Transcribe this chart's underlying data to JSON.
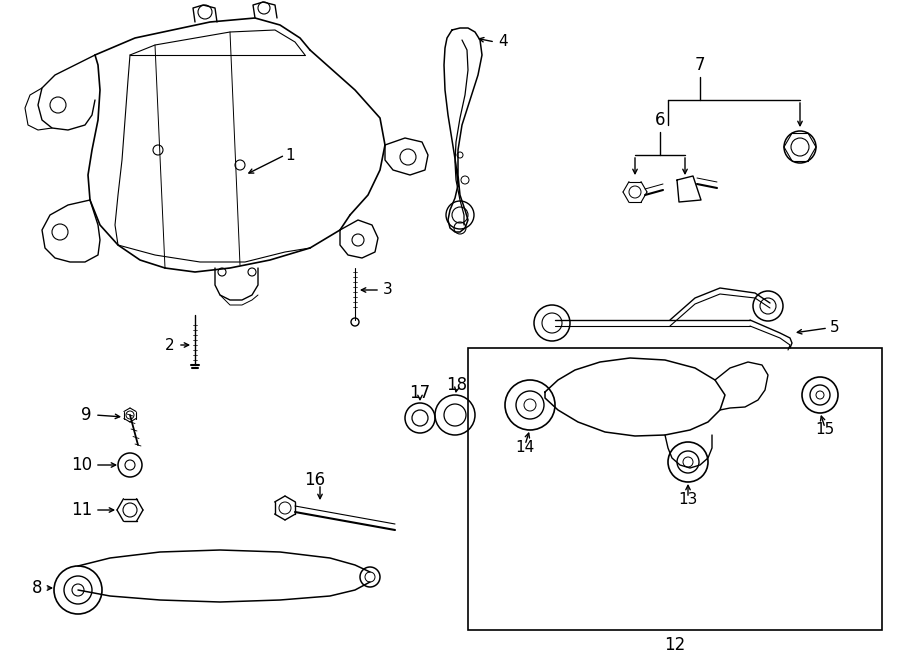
{
  "bg_color": "#ffffff",
  "line_color": "#000000",
  "lw": 1.0,
  "fs": 11
}
